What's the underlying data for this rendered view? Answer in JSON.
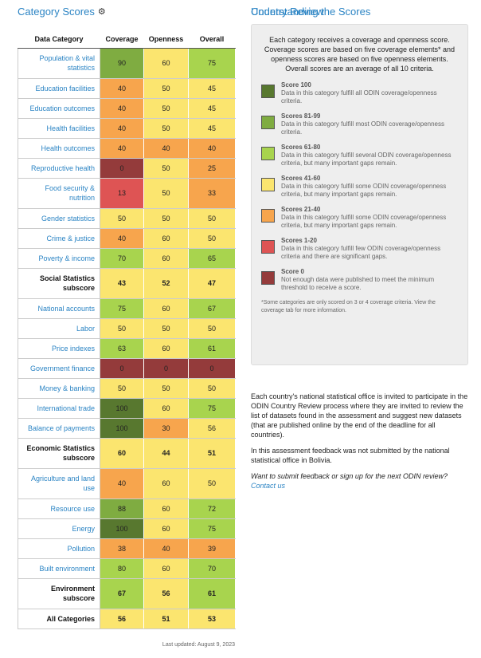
{
  "left": {
    "title": "Category Scores",
    "gear_icon": "gear-icon",
    "columns": {
      "category": "Data Category",
      "coverage": "Coverage",
      "openness": "Openness",
      "overall": "Overall"
    },
    "rows": [
      {
        "category": "Population & vital statistics",
        "coverage": "90",
        "openness": "60",
        "overall": "75",
        "subscore": false
      },
      {
        "category": "Education facilities",
        "coverage": "40",
        "openness": "50",
        "overall": "45",
        "subscore": false
      },
      {
        "category": "Education outcomes",
        "coverage": "40",
        "openness": "50",
        "overall": "45",
        "subscore": false
      },
      {
        "category": "Health facilities",
        "coverage": "40",
        "openness": "50",
        "overall": "45",
        "subscore": false
      },
      {
        "category": "Health outcomes",
        "coverage": "40",
        "openness": "40",
        "overall": "40",
        "subscore": false
      },
      {
        "category": "Reproductive health",
        "coverage": "0",
        "openness": "50",
        "overall": "25",
        "subscore": false
      },
      {
        "category": "Food security & nutrition",
        "coverage": "13",
        "openness": "50",
        "overall": "33",
        "subscore": false
      },
      {
        "category": "Gender statistics",
        "coverage": "50",
        "openness": "50",
        "overall": "50",
        "subscore": false
      },
      {
        "category": "Crime & justice",
        "coverage": "40",
        "openness": "60",
        "overall": "50",
        "subscore": false
      },
      {
        "category": "Poverty & income",
        "coverage": "70",
        "openness": "60",
        "overall": "65",
        "subscore": false
      },
      {
        "category": "Social Statistics subscore",
        "coverage": "43",
        "openness": "52",
        "overall": "47",
        "subscore": true
      },
      {
        "category": "National accounts",
        "coverage": "75",
        "openness": "60",
        "overall": "67",
        "subscore": false
      },
      {
        "category": "Labor",
        "coverage": "50",
        "openness": "50",
        "overall": "50",
        "subscore": false
      },
      {
        "category": "Price indexes",
        "coverage": "63",
        "openness": "60",
        "overall": "61",
        "subscore": false
      },
      {
        "category": "Government finance",
        "coverage": "0",
        "openness": "0",
        "overall": "0",
        "subscore": false
      },
      {
        "category": "Money & banking",
        "coverage": "50",
        "openness": "50",
        "overall": "50",
        "subscore": false
      },
      {
        "category": "International trade",
        "coverage": "100",
        "openness": "60",
        "overall": "75",
        "subscore": false
      },
      {
        "category": "Balance of payments",
        "coverage": "100",
        "openness": "30",
        "overall": "56",
        "subscore": false
      },
      {
        "category": "Economic Statistics subscore",
        "coverage": "60",
        "openness": "44",
        "overall": "51",
        "subscore": true
      },
      {
        "category": "Agriculture and land use",
        "coverage": "40",
        "openness": "60",
        "overall": "50",
        "subscore": false
      },
      {
        "category": "Resource use",
        "coverage": "88",
        "openness": "60",
        "overall": "72",
        "subscore": false
      },
      {
        "category": "Energy",
        "coverage": "100",
        "openness": "60",
        "overall": "75",
        "subscore": false
      },
      {
        "category": "Pollution",
        "coverage": "38",
        "openness": "40",
        "overall": "39",
        "subscore": false
      },
      {
        "category": "Built environment",
        "coverage": "80",
        "openness": "60",
        "overall": "70",
        "subscore": false
      },
      {
        "category": "Environment subscore",
        "coverage": "67",
        "openness": "56",
        "overall": "61",
        "subscore": true
      },
      {
        "category": "All Categories",
        "coverage": "56",
        "openness": "51",
        "overall": "53",
        "subscore": true
      }
    ],
    "updated": "Last updated: August 9, 2023"
  },
  "right": {
    "title": "Understanding the Scores",
    "intro": "Each category receives a coverage and openness score. Coverage scores are based on five coverage elements* and openness scores are based on five openness elements. Overall scores are an average of all 10 criteria.",
    "legend": [
      {
        "title": "Score 100",
        "desc": "Data in this category fulfill all ODIN coverage/openness criteria.",
        "color": "#58782f"
      },
      {
        "title": "Scores 81-99",
        "desc": "Data in this category fulfill most ODIN coverage/openness criteria.",
        "color": "#7fac41"
      },
      {
        "title": "Scores 61-80",
        "desc": "Data in this category fulfill several ODIN coverage/openness criteria, but many important gaps remain.",
        "color": "#a8d44e"
      },
      {
        "title": "Scores 41-60",
        "desc": "Data in this category fulfill some ODIN coverage/openness criteria, but many important gaps remain.",
        "color": "#fbe56f"
      },
      {
        "title": "Scores 21-40",
        "desc": "Data in this category fulfill some ODIN coverage/openness criteria, but many important gaps remain.",
        "color": "#f7a54d"
      },
      {
        "title": "Scores 1-20",
        "desc": "Data in this category fulfill few ODIN coverage/openness criteria and there are significant gaps.",
        "color": "#de5454"
      },
      {
        "title": "Score 0",
        "desc": "Not enough data were published to meet the minimum threshold to receive a score.",
        "color": "#943b3b"
      }
    ],
    "footnote": "*Some categories are only scored on 3 or 4 coverage criteria. View the coverage tab for more information.",
    "country_review": {
      "title": "Country Review",
      "p1": "Each country's national statistical office is invited to participate in the ODIN Country Review process where they are invited to review the list of datasets found in the assessment and suggest new datasets (that are published online by the end of the deadline for all countries).",
      "p2": "In this assessment feedback was not submitted by the national statistical office in Bolivia.",
      "question": "Want to submit feedback or sign up for the next ODIN review?",
      "link": "Contact us"
    }
  }
}
